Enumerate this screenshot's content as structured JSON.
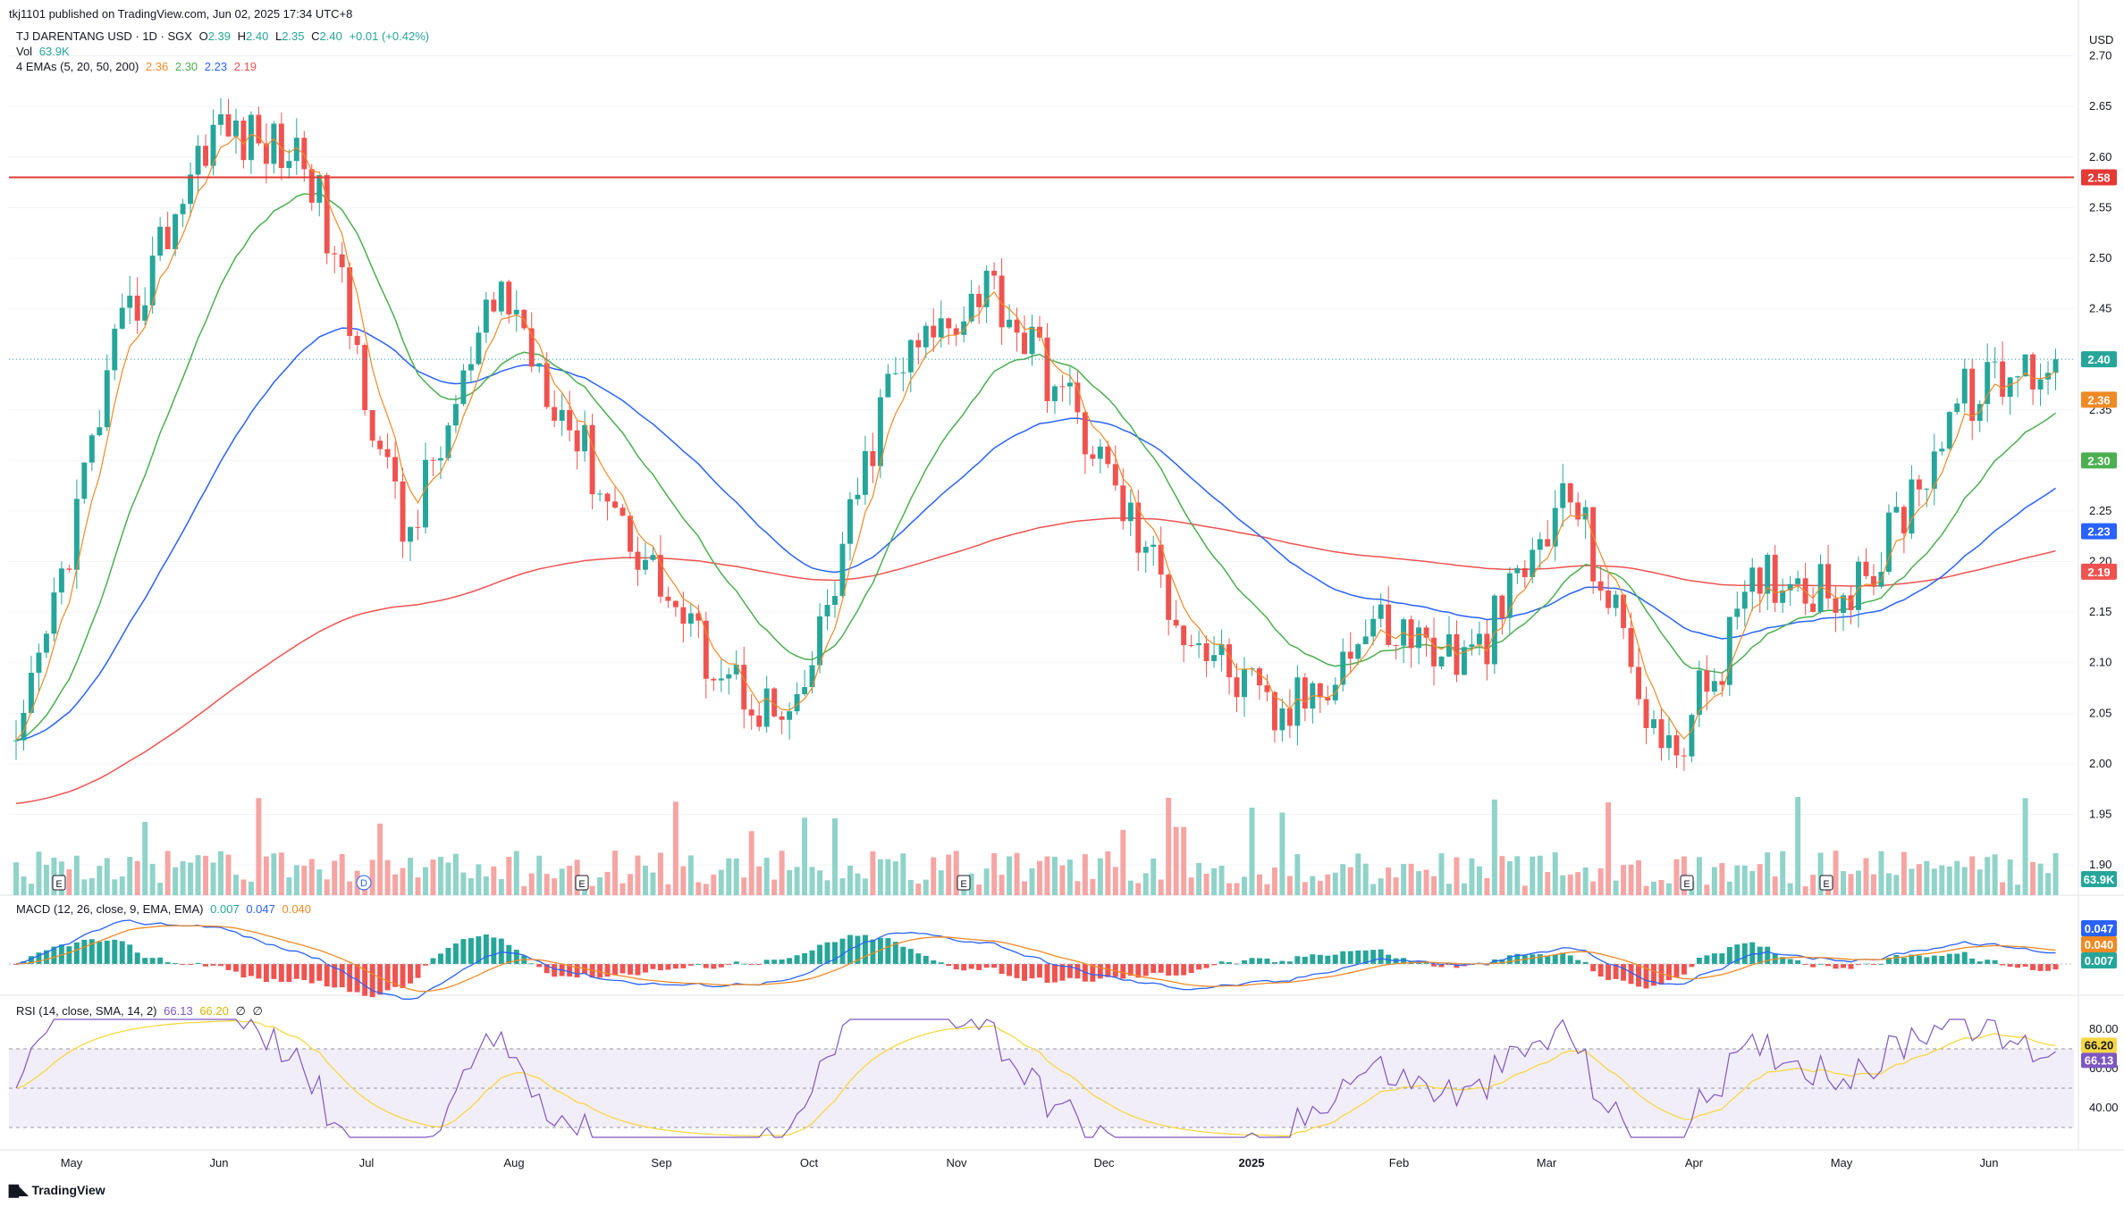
{
  "header": {
    "published": "tkj1101 published on TradingView.com, Jun 02, 2025 17:34 UTC+8",
    "symbol": "TJ DARENTANG USD · 1D · SGX",
    "o_label": "O",
    "o": "2.39",
    "h_label": "H",
    "h": "2.40",
    "l_label": "L",
    "l": "2.35",
    "c_label": "C",
    "c": "2.40",
    "change": "+0.01 (+0.42%)",
    "vol_label": "Vol",
    "vol": "63.9K",
    "ema_label": "4 EMAs (5, 20, 50, 200)",
    "ema_values": [
      "2.36",
      "2.30",
      "2.23",
      "2.19"
    ],
    "macd_label": "MACD (12, 26, close, 9, EMA, EMA)",
    "macd_values": [
      "0.007",
      "0.047",
      "0.040"
    ],
    "rsi_label": "RSI (14, close, SMA, 14, 2)",
    "rsi_values": [
      "66.13",
      "66.20",
      "∅",
      "∅"
    ]
  },
  "footer": {
    "logo": "TradingView"
  },
  "colors": {
    "up": "#26a69a",
    "down": "#ef5350",
    "up_vol": "#8fd3c9",
    "down_vol": "#f5a5a3",
    "ema5": "#f08a24",
    "ema20": "#4caf50",
    "ema50": "#2962ff",
    "ema200": "#ef5350",
    "hline": "#e53935",
    "rsi": "#7e57c2",
    "rsi_ma": "#f6d743"
  },
  "chart_data": {
    "type": "candlestick",
    "currency": "USD",
    "y_ticks": [
      "2.70",
      "2.65",
      "2.60",
      "2.55",
      "2.50",
      "2.45",
      "2.40",
      "2.35",
      "2.30",
      "2.25",
      "2.20",
      "2.15",
      "2.10",
      "2.05",
      "2.00",
      "1.95",
      "1.90"
    ],
    "ylim": [
      1.87,
      2.72
    ],
    "x_labels": [
      "May",
      "Jun",
      "Jul",
      "Aug",
      "Sep",
      "Oct",
      "Nov",
      "Dec",
      "2025",
      "Feb",
      "Mar",
      "Apr",
      "May",
      "Jun"
    ],
    "horizontal_line": 2.58,
    "price_labels": {
      "hline": "2.58",
      "last": "2.40",
      "ema5": "2.36",
      "ema20": "2.30",
      "ema50": "2.23",
      "ema200": "2.19",
      "volume": "63.9K"
    },
    "event_markers": [
      "E",
      "E",
      "E",
      "E",
      "E"
    ],
    "dividend_marker": "D",
    "key_prices": [
      {
        "date": "2024-05",
        "close": 2.0
      },
      {
        "date": "2024-05-late",
        "close": 2.4
      },
      {
        "date": "2024-06",
        "close": 2.63
      },
      {
        "date": "2024-06-mid",
        "close": 2.6
      },
      {
        "date": "2024-07",
        "close": 2.22
      },
      {
        "date": "2024-07-late",
        "close": 2.47
      },
      {
        "date": "2024-08",
        "close": 2.28
      },
      {
        "date": "2024-08-mid",
        "close": 2.12
      },
      {
        "date": "2024-09",
        "close": 2.03
      },
      {
        "date": "2024-10",
        "close": 2.38
      },
      {
        "date": "2024-10-late",
        "close": 2.48
      },
      {
        "date": "2024-11",
        "close": 2.33
      },
      {
        "date": "2024-12",
        "close": 2.14
      },
      {
        "date": "2025-01",
        "close": 2.04
      },
      {
        "date": "2025-02",
        "close": 2.14
      },
      {
        "date": "2025-03",
        "close": 2.1
      },
      {
        "date": "2025-03-late",
        "close": 2.27
      },
      {
        "date": "2025-04",
        "close": 2.0
      },
      {
        "date": "2025-04-late",
        "close": 2.19
      },
      {
        "date": "2025-05",
        "close": 2.17
      },
      {
        "date": "2025-05-late",
        "close": 2.36
      },
      {
        "date": "2025-06",
        "close": 2.4
      }
    ],
    "macd": {
      "ylabels": [
        "0.047",
        "0.040",
        "0.007"
      ]
    },
    "rsi": {
      "ticks": [
        "80.00",
        "60.00",
        "40.00"
      ],
      "labels": [
        "66.20",
        "66.13"
      ],
      "bands": [
        70,
        30
      ]
    }
  }
}
